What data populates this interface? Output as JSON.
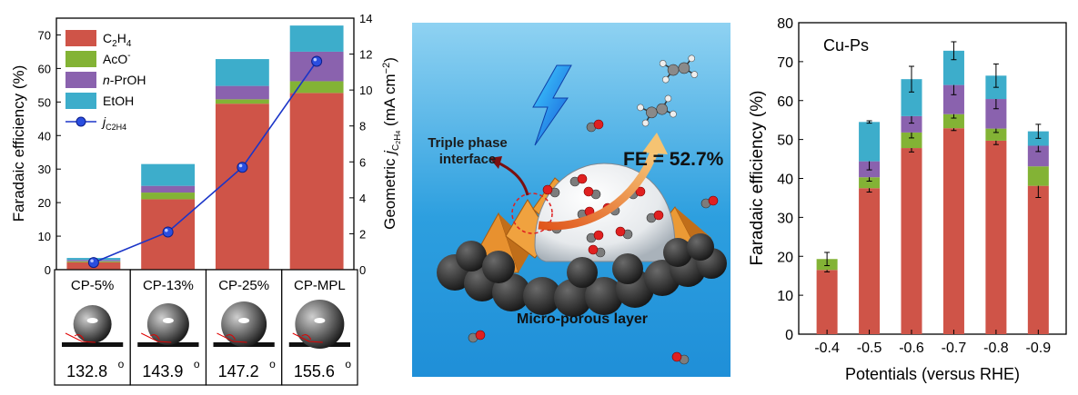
{
  "colors": {
    "c2h4": "#cf5448",
    "aco": "#83b335",
    "nproh": "#8a62ae",
    "etoh": "#3dadcb",
    "line": "#1b35c8",
    "axis": "#000000"
  },
  "panel_a": {
    "ylabel": "Faradaic efficiency (%)",
    "y2label_prefix": "Geometric ",
    "y2label_j": "j",
    "y2label_sub": "C2H4",
    "y2label_suffix": " (mA cm",
    "y2label_sup": "−2",
    "y2label_end": ")",
    "legend": [
      {
        "label": "C2H4",
        "main": "C",
        "sub1": "2",
        "mid": "H",
        "sub2": "4",
        "sup": "",
        "color_key": "c2h4"
      },
      {
        "label": "AcO-",
        "main": "AcO",
        "sub1": "",
        "mid": "",
        "sub2": "",
        "sup": "-",
        "color_key": "aco"
      },
      {
        "label": "n-PrOH",
        "main": "-PrOH",
        "sub1": "",
        "mid": "",
        "sub2": "",
        "sup": "",
        "italic_prefix": "n",
        "color_key": "nproh"
      },
      {
        "label": "EtOH",
        "main": "EtOH",
        "sub1": "",
        "mid": "",
        "sub2": "",
        "sup": "",
        "color_key": "etoh"
      }
    ],
    "line_legend": {
      "j": "j",
      "sub": "C2H4"
    },
    "samples": [
      {
        "name": "CP-5%",
        "angle": "132.8",
        "deg": "o"
      },
      {
        "name": "CP-13%",
        "angle": "143.9",
        "deg": "o"
      },
      {
        "name": "CP-25%",
        "angle": "147.2",
        "deg": "o"
      },
      {
        "name": "CP-MPL",
        "angle": "155.6",
        "deg": "o"
      }
    ]
  },
  "panel_b": {
    "interface_label_1": "Triple phase",
    "interface_label_2": "interface",
    "fe_label": "FE = 52.7%",
    "layer_label": "Micro-porous layer"
  },
  "panel_c": {
    "title": "Cu-Ps",
    "ylabel": "Faradaic efficiency (%)",
    "xlabel": "Potentials (versus RHE)"
  },
  "chart_data": [
    {
      "type": "bar",
      "stacked": true,
      "categories": [
        "CP-5%",
        "CP-13%",
        "CP-25%",
        "CP-MPL"
      ],
      "series": [
        {
          "name": "C2H4",
          "values": [
            2.2,
            21.0,
            49.5,
            52.7
          ]
        },
        {
          "name": "AcO-",
          "values": [
            0.3,
            2.0,
            1.3,
            3.5
          ]
        },
        {
          "name": "n-PrOH",
          "values": [
            0.4,
            2.0,
            4.0,
            8.8
          ]
        },
        {
          "name": "EtOH",
          "values": [
            0.6,
            6.5,
            8.0,
            7.8
          ]
        }
      ],
      "ylabel": "Faradaic efficiency (%)",
      "ylim": [
        0,
        75
      ],
      "yticks": [
        0,
        10,
        20,
        30,
        40,
        50,
        60,
        70
      ],
      "secondary_axis": {
        "label": "Geometric jC2H4 (mA cm-2)",
        "ylim": [
          0,
          14
        ],
        "yticks": [
          0,
          2,
          4,
          6,
          8,
          10,
          12,
          14
        ],
        "series": {
          "name": "jC2H4",
          "type": "line",
          "values": [
            0.4,
            2.1,
            5.7,
            11.6
          ]
        }
      },
      "legend_position": "top-left"
    },
    {
      "type": "bar",
      "stacked": true,
      "title": "Cu-Ps",
      "categories": [
        "-0.4",
        "-0.5",
        "-0.6",
        "-0.7",
        "-0.8",
        "-0.9"
      ],
      "series": [
        {
          "name": "C2H4",
          "values": [
            16.5,
            37.5,
            47.8,
            52.9,
            49.7,
            38.1
          ],
          "errors": [
            0.5,
            1.0,
            1.0,
            0.6,
            1.0,
            3.0
          ]
        },
        {
          "name": "AcO-",
          "values": [
            2.8,
            2.8,
            4.0,
            3.6,
            3.1,
            5.0
          ],
          "errors": [
            0,
            1.0,
            1.4,
            1.0,
            1.0,
            0
          ]
        },
        {
          "name": "n-PrOH",
          "values": [
            0,
            4.1,
            4.2,
            7.5,
            7.6,
            5.3
          ],
          "errors": [
            0,
            2.2,
            1.8,
            2.5,
            2.5,
            1.5
          ]
        },
        {
          "name": "EtOH",
          "values": [
            0,
            10.1,
            9.5,
            8.8,
            6.0,
            3.7
          ],
          "errors": [
            1.7,
            0.3,
            3.3,
            2.3,
            3.0,
            1.8
          ]
        }
      ],
      "xlabel": "Potentials (versus RHE)",
      "ylabel": "Faradaic efficiency (%)",
      "ylim": [
        0,
        80
      ],
      "yticks": [
        0,
        10,
        20,
        30,
        40,
        50,
        60,
        70,
        80
      ]
    }
  ]
}
